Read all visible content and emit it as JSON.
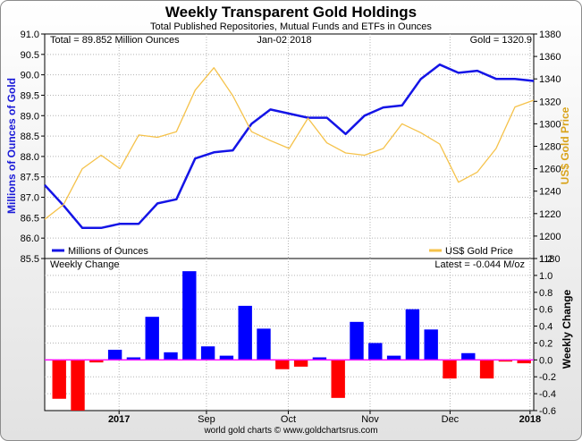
{
  "header": {
    "title": "Weekly Transparent Gold Holdings",
    "subtitle": "Total Published Repositories, Mutual Funds and ETFs in Ounces"
  },
  "footer": {
    "credit": "world gold charts © www.goldchartsrus.com"
  },
  "colors": {
    "holdings": "#1414e6",
    "gold": "#f5c24a",
    "positive": "#0000ff",
    "negative": "#ff0000",
    "zero_line": "#ff00ff",
    "grid": "#b4b4b4",
    "left_axis_label": "#1a1ad8",
    "right_axis_label": "#d9a31a"
  },
  "chart_data": [
    {
      "type": "line",
      "header_left": "Total = 89.852 Million Ounces",
      "header_center": "Jan-02  2018",
      "header_right": "Gold = 1320.9",
      "ylabel": "Millions of Ounces of Gold",
      "ylabel_right": "US$ Gold Price",
      "ylim": [
        85.5,
        91.0
      ],
      "yticks": [
        "85.5",
        "86.0",
        "86.5",
        "87.0",
        "87.5",
        "88.0",
        "88.5",
        "89.0",
        "89.5",
        "90.0",
        "90.5",
        "91.0"
      ],
      "ylim_right": [
        1180,
        1380
      ],
      "yticks_right": [
        "1180",
        "1200",
        "1220",
        "1240",
        "1260",
        "1280",
        "1300",
        "1320",
        "1340",
        "1360",
        "1380"
      ],
      "grid": true,
      "legend_position": "bottom",
      "series": [
        {
          "name": "Millions of Ounces",
          "axis": "left",
          "values": [
            87.3,
            86.8,
            86.25,
            86.25,
            86.35,
            86.35,
            86.85,
            86.95,
            87.95,
            88.1,
            88.15,
            88.8,
            89.15,
            89.05,
            88.95,
            88.95,
            88.55,
            89.0,
            89.2,
            89.25,
            89.9,
            90.25,
            90.05,
            90.1,
            89.9,
            89.9,
            89.85
          ]
        },
        {
          "name": "US$ Gold Price",
          "axis": "right",
          "values": [
            1215,
            1228,
            1260,
            1272,
            1260,
            1290,
            1288,
            1293,
            1330,
            1350,
            1325,
            1293,
            1285,
            1278,
            1305,
            1283,
            1274,
            1272,
            1278,
            1300,
            1292,
            1282,
            1248,
            1257,
            1278,
            1315,
            1321
          ]
        }
      ]
    },
    {
      "type": "bar",
      "header_left": "Weekly Change",
      "header_right": "Latest = -0.044 M/oz",
      "ylabel_right": "Weekly Change",
      "ylim": [
        -0.6,
        1.2
      ],
      "yticks": [
        "-0.6",
        "-0.4",
        "-0.2",
        "0.0",
        "0.2",
        "0.4",
        "0.6",
        "0.8",
        "1.0",
        "1.2"
      ],
      "x_tick_labels": [
        "2017",
        "Sep",
        "Oct",
        "Nov",
        "Dec",
        "2018"
      ],
      "grid": true,
      "values": [
        -0.46,
        -0.62,
        -0.03,
        0.12,
        0.03,
        0.51,
        0.09,
        1.05,
        0.16,
        0.05,
        0.64,
        0.37,
        -0.11,
        -0.08,
        0.03,
        -0.45,
        0.45,
        0.2,
        0.05,
        0.6,
        0.36,
        -0.22,
        0.08,
        -0.22,
        -0.02,
        -0.04
      ]
    }
  ]
}
